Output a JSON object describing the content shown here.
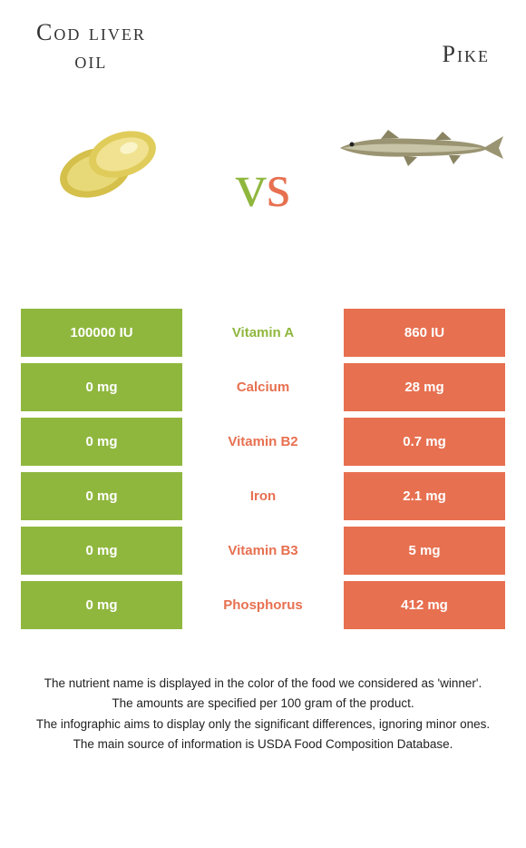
{
  "header": {
    "left_title_line1": "Cod liver",
    "left_title_line2": "oil",
    "right_title": "Pike",
    "vs_v": "v",
    "vs_s": "s"
  },
  "colors": {
    "green": "#8fb73e",
    "orange": "#e77050",
    "white": "#ffffff",
    "text": "#333333"
  },
  "table": {
    "rows": [
      {
        "left": "100000 IU",
        "mid": "Vitamin A",
        "mid_color": "green",
        "right": "860 IU"
      },
      {
        "left": "0 mg",
        "mid": "Calcium",
        "mid_color": "orange",
        "right": "28 mg"
      },
      {
        "left": "0 mg",
        "mid": "Vitamin B2",
        "mid_color": "orange",
        "right": "0.7 mg"
      },
      {
        "left": "0 mg",
        "mid": "Iron",
        "mid_color": "orange",
        "right": "2.1 mg"
      },
      {
        "left": "0 mg",
        "mid": "Vitamin B3",
        "mid_color": "orange",
        "right": "5 mg"
      },
      {
        "left": "0 mg",
        "mid": "Phosphorus",
        "mid_color": "orange",
        "right": "412 mg"
      }
    ]
  },
  "footer": {
    "line1": "The nutrient name is displayed in the color of the food we considered as 'winner'.",
    "line2": "The amounts are specified per 100 gram of the product.",
    "line3": "The infographic aims to display only the significant differences, ignoring minor ones.",
    "line4": "The main source of information is USDA Food Composition Database."
  }
}
